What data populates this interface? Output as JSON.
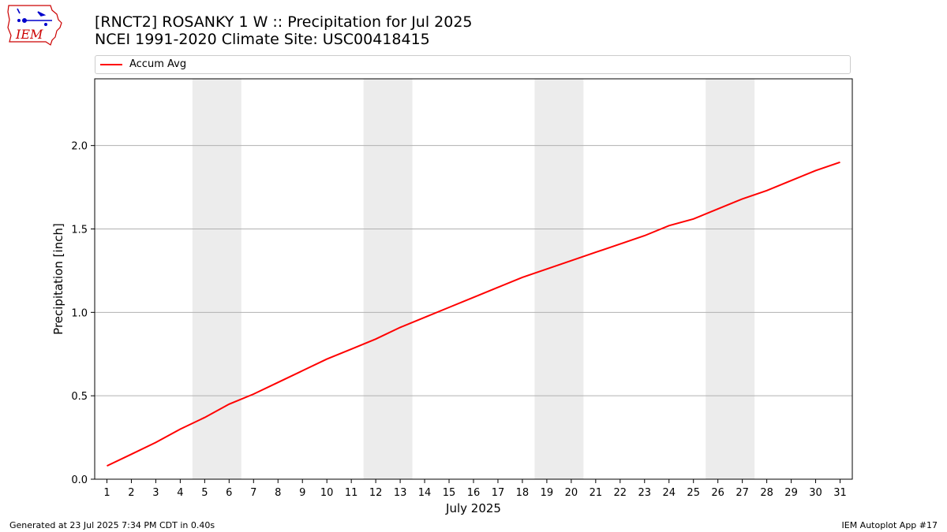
{
  "header": {
    "title_line1": "[RNCT2] ROSANKY 1 W :: Precipitation for Jul 2025",
    "title_line2": "NCEI 1991-2020 Climate Site: USC00418415",
    "logo_text": "IEM"
  },
  "footer": {
    "generated": "Generated at 23 Jul 2025 7:34 PM CDT in 0.40s",
    "app": "IEM Autoplot App #17"
  },
  "colors": {
    "series": "#ff0000",
    "weekend_band": "#ececec",
    "grid": "#b0b0b0",
    "logo": "#cc0000",
    "logo_accent": "#0000cc"
  },
  "chart_data": {
    "type": "line",
    "xlabel": "July 2025",
    "ylabel": "Precipitation [inch]",
    "xlim": [
      0.5,
      31.5
    ],
    "ylim": [
      0,
      2.4
    ],
    "x_ticks": [
      1,
      2,
      3,
      4,
      5,
      6,
      7,
      8,
      9,
      10,
      11,
      12,
      13,
      14,
      15,
      16,
      17,
      18,
      19,
      20,
      21,
      22,
      23,
      24,
      25,
      26,
      27,
      28,
      29,
      30,
      31
    ],
    "y_ticks": [
      0.0,
      0.5,
      1.0,
      1.5,
      2.0
    ],
    "y_tick_labels": [
      "0.0",
      "0.5",
      "1.0",
      "1.5",
      "2.0"
    ],
    "grid": "horizontal",
    "legend_position": "top",
    "weekend_days": [
      5,
      6,
      12,
      13,
      19,
      20,
      26,
      27
    ],
    "x": [
      1,
      2,
      3,
      4,
      5,
      6,
      7,
      8,
      9,
      10,
      11,
      12,
      13,
      14,
      15,
      16,
      17,
      18,
      19,
      20,
      21,
      22,
      23,
      24,
      25,
      26,
      27,
      28,
      29,
      30,
      31
    ],
    "series": [
      {
        "name": "Accum Avg",
        "color": "#ff0000",
        "values": [
          0.08,
          0.15,
          0.22,
          0.3,
          0.37,
          0.45,
          0.51,
          0.58,
          0.65,
          0.72,
          0.78,
          0.84,
          0.91,
          0.97,
          1.03,
          1.09,
          1.15,
          1.21,
          1.26,
          1.31,
          1.36,
          1.41,
          1.46,
          1.52,
          1.56,
          1.62,
          1.68,
          1.73,
          1.79,
          1.85,
          1.9
        ]
      }
    ]
  }
}
